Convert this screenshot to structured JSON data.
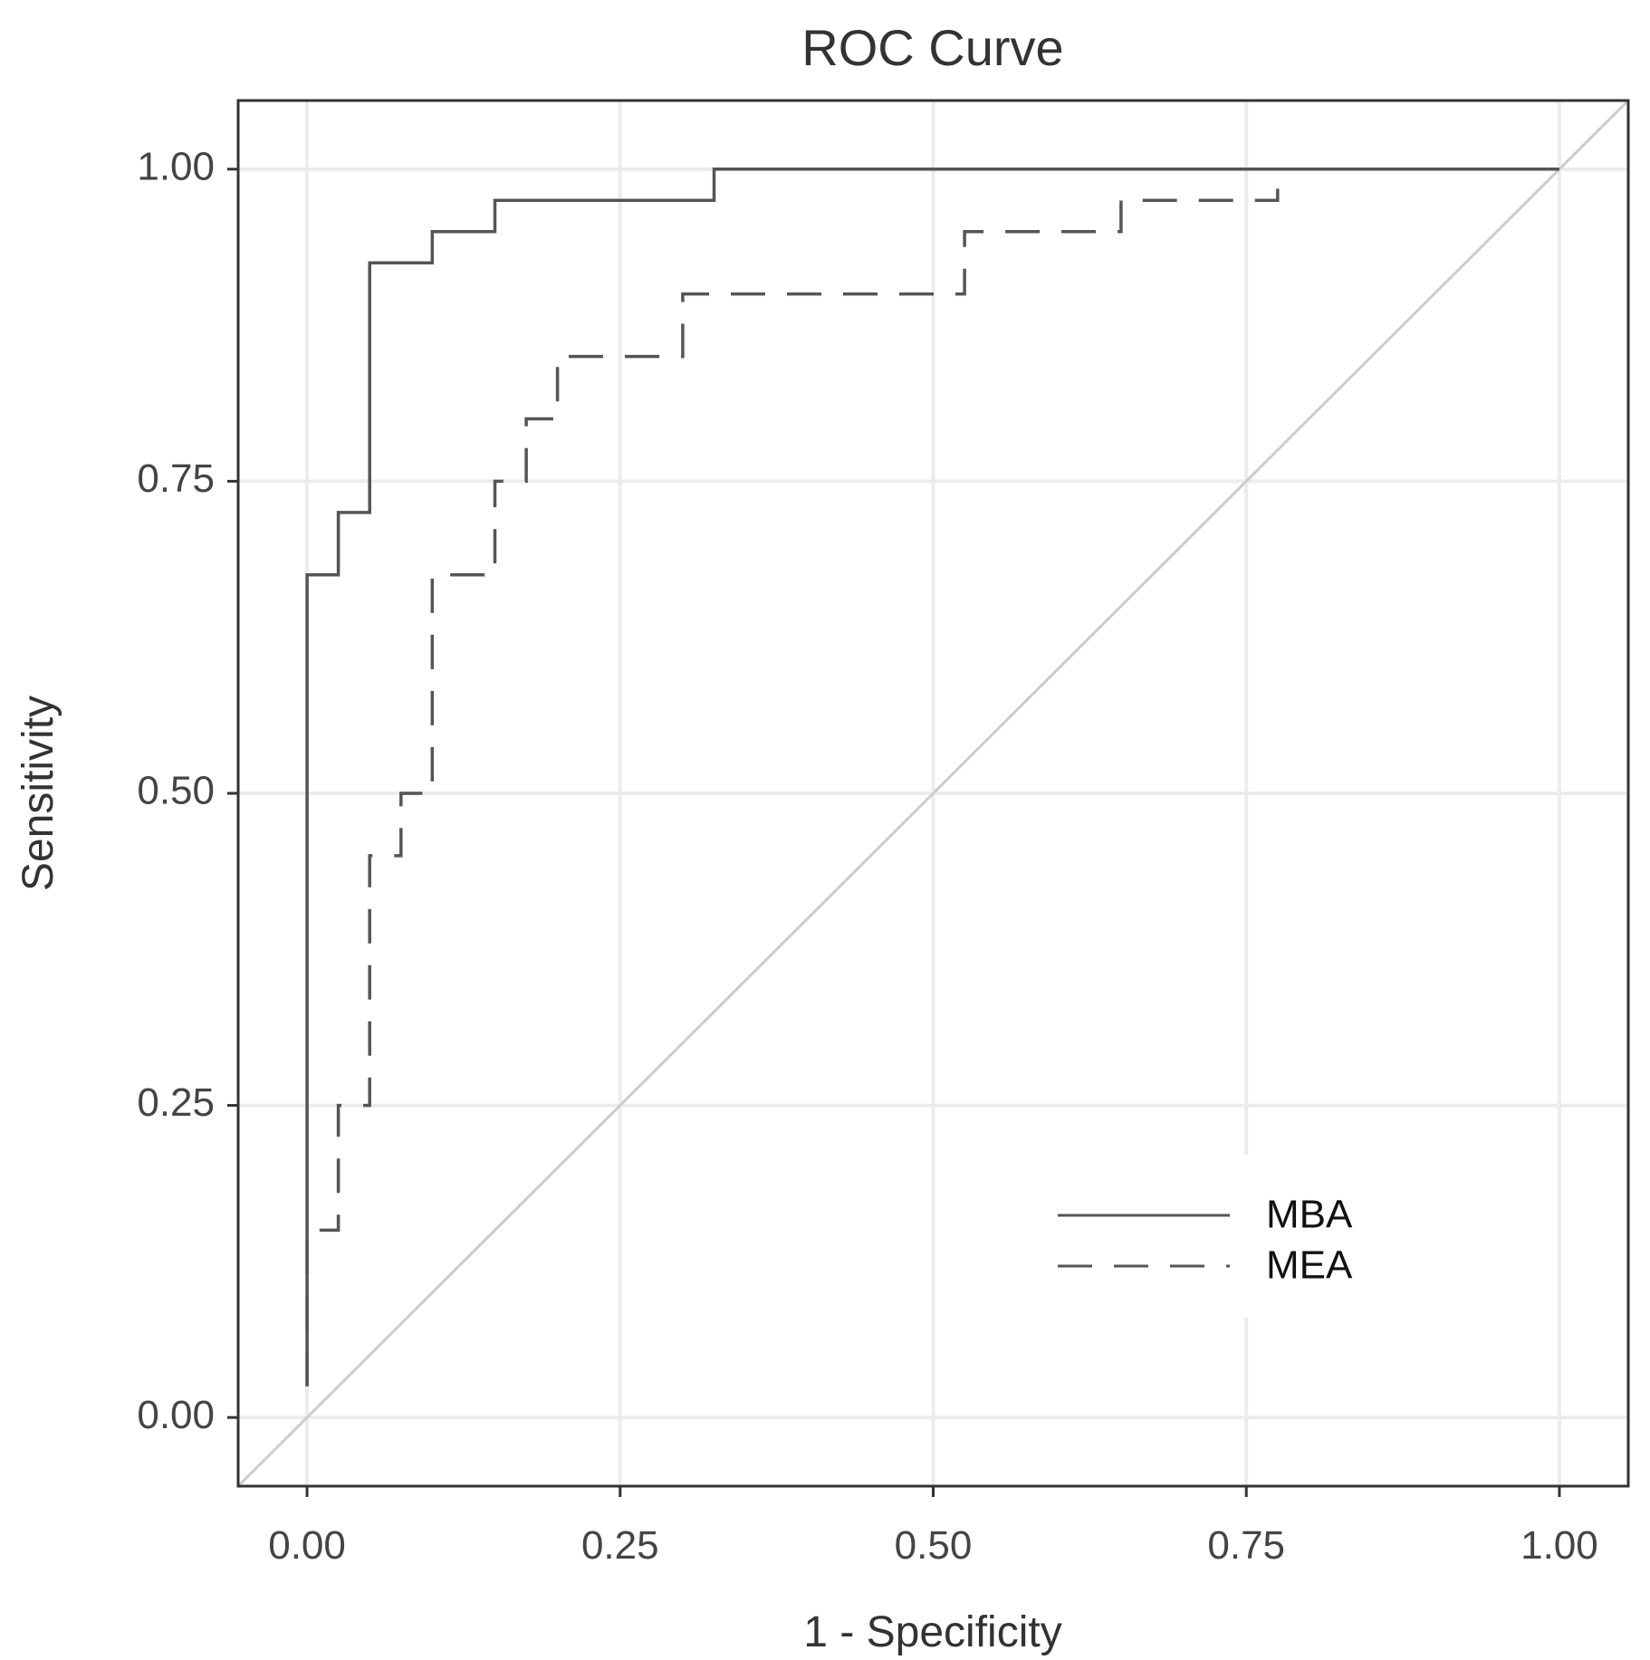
{
  "chart_data": {
    "type": "line",
    "title": "ROC Curve",
    "xlabel": "1 - Specificity",
    "ylabel": "Sensitivity",
    "xlim": [
      -0.055,
      1.055
    ],
    "ylim": [
      -0.055,
      1.055
    ],
    "xticks": [
      0,
      0.25,
      0.5,
      0.75,
      1
    ],
    "yticks": [
      0,
      0.25,
      0.5,
      0.75,
      1
    ],
    "xtick_labels": [
      "0.00",
      "0.25",
      "0.50",
      "0.75",
      "1.00"
    ],
    "ytick_labels": [
      "0.00",
      "0.25",
      "0.50",
      "0.75",
      "1.00"
    ],
    "grid": true,
    "legend_position": "bottom-right",
    "reference_line": {
      "name": "diagonal",
      "color": "#cccccc"
    },
    "series": [
      {
        "name": "MBA",
        "style": "solid",
        "color": "#555555",
        "points": [
          [
            0.0,
            0.025
          ],
          [
            0.0,
            0.675
          ],
          [
            0.025,
            0.675
          ],
          [
            0.025,
            0.725
          ],
          [
            0.05,
            0.725
          ],
          [
            0.05,
            0.925
          ],
          [
            0.1,
            0.925
          ],
          [
            0.1,
            0.95
          ],
          [
            0.15,
            0.95
          ],
          [
            0.15,
            0.975
          ],
          [
            0.325,
            0.975
          ],
          [
            0.325,
            1.0
          ],
          [
            1.0,
            1.0
          ]
        ]
      },
      {
        "name": "MEA",
        "style": "dashed",
        "color": "#555555",
        "points": [
          [
            0.0,
            0.025
          ],
          [
            0.0,
            0.15
          ],
          [
            0.025,
            0.15
          ],
          [
            0.025,
            0.25
          ],
          [
            0.05,
            0.25
          ],
          [
            0.05,
            0.45
          ],
          [
            0.075,
            0.45
          ],
          [
            0.075,
            0.5
          ],
          [
            0.1,
            0.5
          ],
          [
            0.1,
            0.675
          ],
          [
            0.15,
            0.675
          ],
          [
            0.15,
            0.75
          ],
          [
            0.175,
            0.75
          ],
          [
            0.175,
            0.8
          ],
          [
            0.2,
            0.8
          ],
          [
            0.2,
            0.85
          ],
          [
            0.3,
            0.85
          ],
          [
            0.3,
            0.9
          ],
          [
            0.525,
            0.9
          ],
          [
            0.525,
            0.95
          ],
          [
            0.65,
            0.95
          ],
          [
            0.65,
            0.975
          ],
          [
            0.775,
            0.975
          ],
          [
            0.775,
            1.0
          ],
          [
            1.0,
            1.0
          ]
        ]
      }
    ]
  }
}
